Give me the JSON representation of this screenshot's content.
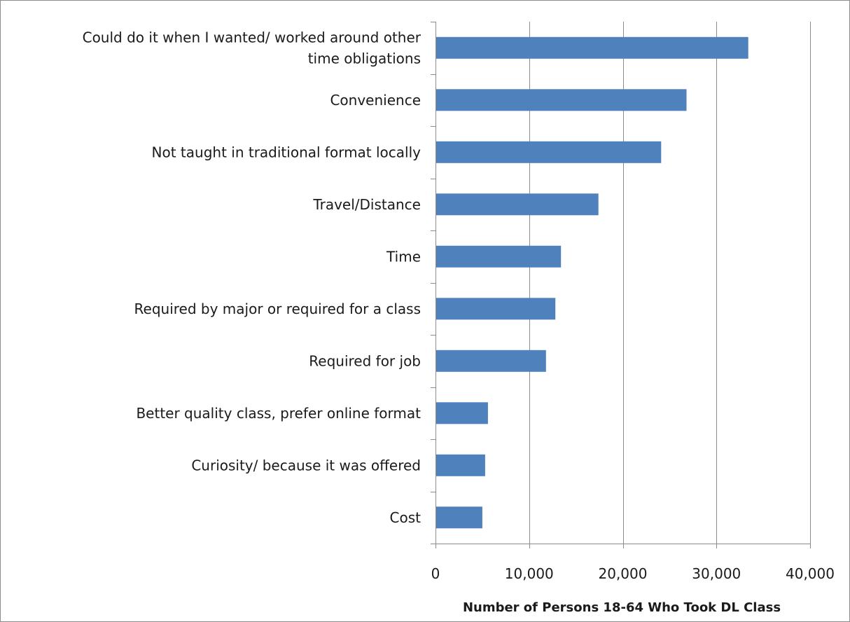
{
  "chart_data": {
    "type": "bar",
    "orientation": "horizontal",
    "categories": [
      "Could do it when I wanted/ worked around other time obligations",
      "Convenience",
      "Not taught in traditional format locally",
      "Travel/Distance",
      "Time",
      "Required by major or required for a class",
      "Required for job",
      "Better quality class, prefer online format",
      "Curiosity/ because it was offered",
      "Cost"
    ],
    "category_lines": [
      [
        "Could do it when I wanted/ worked around other",
        "time obligations"
      ],
      [
        "Convenience"
      ],
      [
        "Not taught in traditional format locally"
      ],
      [
        "Travel/Distance"
      ],
      [
        "Time"
      ],
      [
        "Required by major or required for a class"
      ],
      [
        "Required for job"
      ],
      [
        "Better quality class, prefer online format"
      ],
      [
        "Curiosity/ because it was offered"
      ],
      [
        "Cost"
      ]
    ],
    "values": [
      33400,
      26800,
      24100,
      17400,
      13400,
      12800,
      11800,
      5600,
      5300,
      5000
    ],
    "xlabel": "Number of Persons 18-64 Who Took DL Class",
    "ylabel": "",
    "xlim": [
      0,
      40000
    ],
    "ticks": [
      0,
      10000,
      20000,
      30000,
      40000
    ],
    "tick_labels": [
      "0",
      "10,000",
      "20,000",
      "30,000",
      "40,000"
    ],
    "grid": "vertical",
    "legend": "none",
    "bar_color": "#4f81bd",
    "grid_color": "#8c8c8c"
  }
}
